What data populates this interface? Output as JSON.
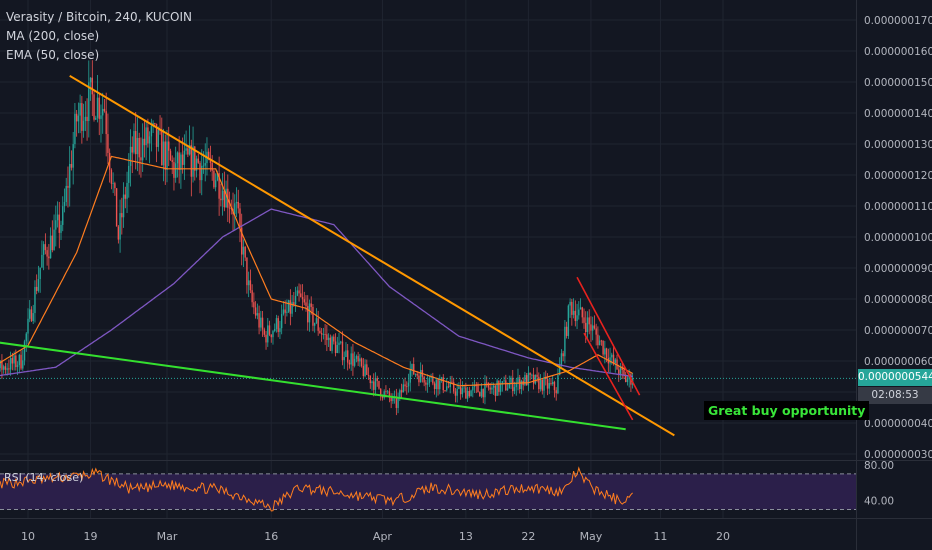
{
  "legend": {
    "title": "Verasity / Bitcoin, 240, KUCOIN",
    "ma": "MA (200, close)",
    "ema": "EMA (50, close)"
  },
  "rsi_label": "RSI (14, close)",
  "last_price": "0.0000000544",
  "countdown": "02:08:53",
  "annotation": "Great buy opportunity",
  "colors": {
    "background": "#131722",
    "up": "#26a69a",
    "down": "#ef5350",
    "ma200": "#7e57c2",
    "ema50": "#ff7d1f",
    "trend_orange": "#ff9800",
    "trend_green": "#34e02f",
    "trend_red": "#e8221e",
    "rsi_line": "#ff7d1f",
    "rsi_band": "#2b1f4a"
  },
  "chart_data": [
    {
      "type": "candlestick",
      "title": "Verasity / Bitcoin, 240, KUCOIN",
      "x_tick_labels": [
        "10",
        "19",
        "Mar",
        "16",
        "Apr",
        "13",
        "22",
        "May",
        "11",
        "20"
      ],
      "y_tick_labels": [
        "0.0000000300",
        "0.0000000400",
        "0.0000000500",
        "0.0000000600",
        "0.0000000700",
        "0.0000000800",
        "0.0000000900",
        "0.0000001000",
        "0.0000001100",
        "0.0000001200",
        "0.0000001300",
        "0.0000001400",
        "0.0000001500",
        "0.0000001600",
        "0.0000001700"
      ],
      "ylim": [
        3e-08,
        1.73e-07
      ],
      "close_anchors": {
        "x": [
          "Feb 02",
          "Feb 09",
          "Feb 12",
          "Feb 15",
          "Feb 17",
          "Feb 19",
          "Feb 21",
          "Feb 23",
          "Feb 25",
          "Feb 28",
          "Mar 02",
          "Mar 05",
          "Mar 08",
          "Mar 11",
          "Mar 13",
          "Mar 15",
          "Mar 17",
          "Mar 20",
          "Mar 24",
          "Mar 28",
          "Apr 01",
          "Apr 03",
          "Apr 05",
          "Apr 08",
          "Apr 12",
          "Apr 17",
          "Apr 22",
          "Apr 26",
          "Apr 28",
          "May 01",
          "May 04",
          "May 06",
          "May 07"
        ],
        "y": [
          5.5e-08,
          6e-08,
          9.3e-08,
          1.06e-07,
          1.38e-07,
          1.45e-07,
          1.42e-07,
          1e-07,
          1.28e-07,
          1.32e-07,
          1.22e-07,
          1.25e-07,
          1.2e-07,
          1.08e-07,
          8e-08,
          6.8e-08,
          7.2e-08,
          8e-08,
          6.7e-08,
          6e-08,
          5e-08,
          4.6e-08,
          5.7e-08,
          5.4e-08,
          5e-08,
          5.1e-08,
          5.4e-08,
          5.1e-08,
          7.8e-08,
          7.1e-08,
          6e-08,
          5.4e-08,
          5.44e-08
        ]
      },
      "last_value": 5.44e-08,
      "indicators": [
        "MA (200, close)",
        "EMA (50, close)"
      ],
      "ma200_anchors": {
        "x": [
          "Feb 02",
          "Feb 14",
          "Feb 22",
          "Mar 02",
          "Mar 09",
          "Mar 16",
          "Mar 25",
          "Apr 02",
          "Apr 12",
          "Apr 22",
          "Apr 28",
          "May 07"
        ],
        "y": [
          5.4e-08,
          5.8e-08,
          7e-08,
          8.5e-08,
          1e-07,
          1.09e-07,
          1.04e-07,
          8.4e-08,
          6.8e-08,
          6.1e-08,
          5.8e-08,
          5.5e-08
        ]
      },
      "ema50_anchors": {
        "x": [
          "Feb 02",
          "Feb 10",
          "Feb 17",
          "Feb 22",
          "Mar 01",
          "Mar 08",
          "Mar 12",
          "Mar 16",
          "Mar 21",
          "Mar 28",
          "Apr 04",
          "Apr 12",
          "Apr 22",
          "Apr 28",
          "May 02",
          "May 07"
        ],
        "y": [
          5.4e-08,
          6.5e-08,
          9.5e-08,
          1.26e-07,
          1.22e-07,
          1.22e-07,
          1e-07,
          8e-08,
          7.7e-08,
          6.6e-08,
          5.8e-08,
          5.2e-08,
          5.3e-08,
          5.7e-08,
          6.2e-08,
          5.6e-08
        ]
      },
      "trendlines": [
        {
          "color": "orange",
          "from": [
            "Feb 16",
            1.52e-07
          ],
          "to": [
            "May 13",
            3.6e-08
          ]
        },
        {
          "color": "green",
          "from": [
            "Jan 27",
            6.9e-08
          ],
          "to": [
            "May 06",
            3.8e-08
          ]
        },
        {
          "color": "red",
          "from": [
            "Apr 29",
            8.7e-08
          ],
          "to": [
            "May 08",
            4.9e-08
          ]
        },
        {
          "color": "red",
          "from": [
            "Apr 30",
            6.9e-08
          ],
          "to": [
            "May 07",
            4.1e-08
          ]
        }
      ]
    },
    {
      "type": "line",
      "title": "RSI (14, close)",
      "y_tick_labels": [
        "40.00",
        "80.00"
      ],
      "band": [
        30,
        70
      ],
      "ylim": [
        25,
        80
      ],
      "anchors": {
        "x": [
          "Feb 02",
          "Feb 10",
          "Feb 15",
          "Feb 20",
          "Feb 25",
          "Mar 01",
          "Mar 08",
          "Mar 13",
          "Mar 16",
          "Mar 20",
          "Mar 28",
          "Apr 03",
          "Apr 08",
          "Apr 15",
          "Apr 22",
          "Apr 27",
          "Apr 29",
          "May 01",
          "May 05",
          "May 07"
        ],
        "y": [
          55,
          62,
          66,
          70,
          52,
          58,
          53,
          42,
          32,
          55,
          46,
          40,
          55,
          47,
          55,
          50,
          73,
          55,
          40,
          44
        ]
      }
    }
  ]
}
